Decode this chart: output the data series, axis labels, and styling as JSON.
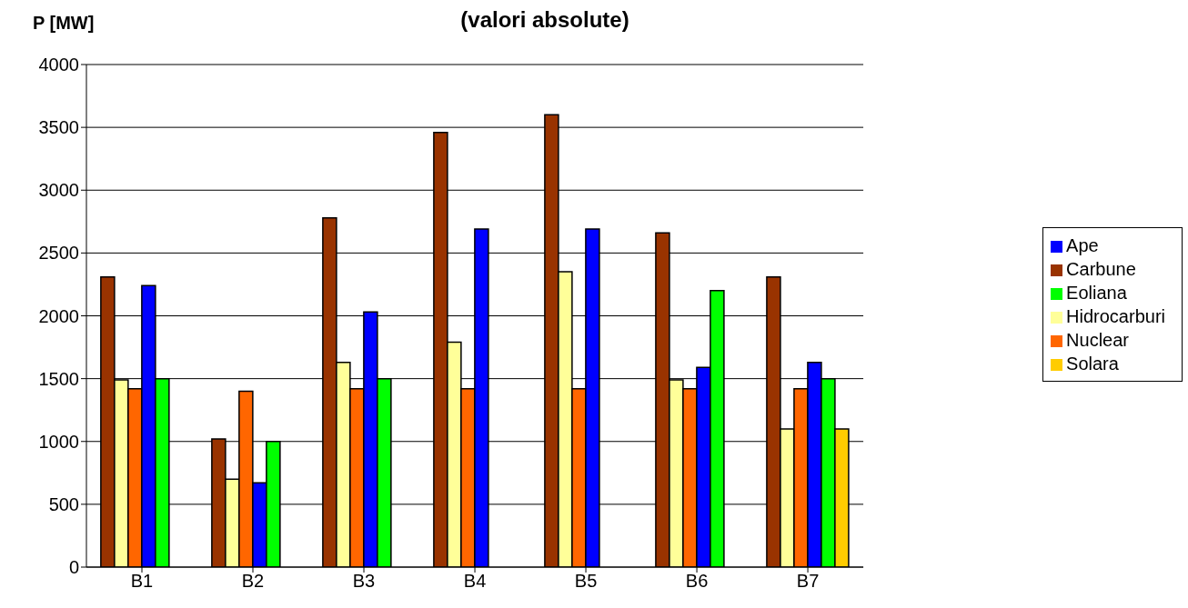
{
  "chart_data": {
    "type": "bar",
    "title": "(valori absolute)",
    "ylabel": "P [MW]",
    "categories": [
      "B1",
      "B2",
      "B3",
      "B4",
      "B5",
      "B6",
      "B7"
    ],
    "series": [
      {
        "name": "Carbune",
        "color": "#993300",
        "values": [
          2310,
          1020,
          2780,
          3460,
          3600,
          2660,
          2310
        ]
      },
      {
        "name": "Hidrocarburi",
        "color": "#ffff99",
        "values": [
          1490,
          700,
          1630,
          1790,
          2350,
          1490,
          1100
        ]
      },
      {
        "name": "Nuclear",
        "color": "#ff6600",
        "values": [
          1420,
          1400,
          1420,
          1420,
          1420,
          1420,
          1420
        ]
      },
      {
        "name": "Ape",
        "color": "#0000ff",
        "values": [
          2240,
          670,
          2030,
          2690,
          2690,
          1590,
          1630
        ]
      },
      {
        "name": "Eoliana",
        "color": "#00ff00",
        "values": [
          1500,
          1000,
          1500,
          null,
          null,
          2200,
          1500
        ]
      },
      {
        "name": "Solara",
        "color": "#ffcc00",
        "values": [
          null,
          null,
          null,
          null,
          null,
          null,
          1100
        ]
      }
    ],
    "ylim": [
      0,
      4000
    ],
    "yticks": [
      0,
      500,
      1000,
      1500,
      2000,
      2500,
      3000,
      3500,
      4000
    ],
    "grid": "y",
    "legend": "right"
  }
}
